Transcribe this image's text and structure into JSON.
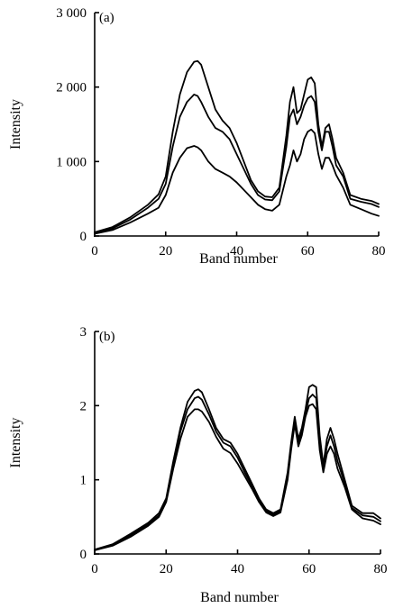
{
  "chart_data": [
    {
      "type": "line",
      "panel_label": "(a)",
      "xlabel": "Band number",
      "ylabel": "Intensity",
      "xlim": [
        0,
        80
      ],
      "ylim": [
        0,
        3000
      ],
      "xticks": [
        0,
        20,
        40,
        60,
        80
      ],
      "xtick_labels": [
        "0",
        "20",
        "40",
        "60",
        "80"
      ],
      "yticks": [
        0,
        1000,
        2000,
        3000
      ],
      "ytick_labels": [
        "0",
        "1 000",
        "2 000",
        "3 000"
      ],
      "grid": false,
      "x": [
        0,
        5,
        10,
        15,
        18,
        20,
        22,
        24,
        26,
        28,
        29,
        30,
        32,
        34,
        36,
        38,
        40,
        42,
        44,
        46,
        48,
        50,
        52,
        54,
        55,
        56,
        57,
        58,
        59,
        60,
        61,
        62,
        63,
        64,
        65,
        66,
        67,
        68,
        70,
        72,
        75,
        78,
        80
      ],
      "series": [
        {
          "values": [
            50,
            120,
            250,
            420,
            560,
            800,
            1400,
            1900,
            2200,
            2340,
            2350,
            2300,
            2000,
            1700,
            1550,
            1450,
            1250,
            1000,
            750,
            600,
            530,
            520,
            650,
            1350,
            1800,
            2000,
            1650,
            1700,
            1900,
            2100,
            2130,
            2050,
            1500,
            1200,
            1450,
            1500,
            1300,
            1050,
            850,
            550,
            500,
            470,
            430
          ]
        },
        {
          "values": [
            40,
            100,
            220,
            380,
            500,
            700,
            1200,
            1600,
            1800,
            1900,
            1880,
            1800,
            1600,
            1450,
            1400,
            1300,
            1100,
            900,
            700,
            550,
            490,
            480,
            600,
            1200,
            1600,
            1700,
            1500,
            1600,
            1750,
            1850,
            1880,
            1800,
            1400,
            1150,
            1400,
            1400,
            1200,
            950,
            800,
            500,
            460,
            430,
            390
          ]
        },
        {
          "values": [
            30,
            80,
            180,
            300,
            380,
            550,
            850,
            1050,
            1180,
            1210,
            1190,
            1150,
            1000,
            900,
            850,
            800,
            720,
            620,
            520,
            420,
            360,
            340,
            420,
            800,
            950,
            1150,
            1000,
            1100,
            1300,
            1400,
            1430,
            1380,
            1100,
            900,
            1050,
            1050,
            950,
            820,
            650,
            420,
            360,
            300,
            270
          ]
        }
      ]
    },
    {
      "type": "line",
      "panel_label": "(b)",
      "xlabel": "Band number",
      "ylabel": "Intensity",
      "xlim": [
        0,
        80
      ],
      "ylim": [
        0,
        3
      ],
      "xticks": [
        0,
        20,
        40,
        60,
        80
      ],
      "xtick_labels": [
        "0",
        "20",
        "40",
        "60",
        "80"
      ],
      "yticks": [
        0,
        1,
        2,
        3
      ],
      "ytick_labels": [
        "0",
        "1",
        "2",
        "3"
      ],
      "grid": false,
      "x": [
        0,
        5,
        10,
        15,
        18,
        20,
        22,
        24,
        26,
        28,
        29,
        30,
        32,
        34,
        36,
        38,
        40,
        42,
        44,
        46,
        48,
        50,
        52,
        54,
        55,
        56,
        57,
        58,
        59,
        60,
        61,
        62,
        63,
        64,
        65,
        66,
        67,
        68,
        70,
        72,
        75,
        78,
        80
      ],
      "series": [
        {
          "values": [
            0.06,
            0.13,
            0.27,
            0.42,
            0.55,
            0.75,
            1.25,
            1.7,
            2.05,
            2.2,
            2.22,
            2.18,
            1.95,
            1.7,
            1.55,
            1.5,
            1.35,
            1.15,
            0.95,
            0.75,
            0.6,
            0.55,
            0.6,
            1.1,
            1.5,
            1.85,
            1.55,
            1.7,
            1.95,
            2.25,
            2.28,
            2.25,
            1.6,
            1.2,
            1.55,
            1.7,
            1.55,
            1.35,
            1.0,
            0.65,
            0.55,
            0.55,
            0.48
          ]
        },
        {
          "values": [
            0.05,
            0.12,
            0.25,
            0.4,
            0.52,
            0.72,
            1.2,
            1.65,
            1.95,
            2.1,
            2.12,
            2.08,
            1.88,
            1.65,
            1.5,
            1.45,
            1.3,
            1.1,
            0.92,
            0.72,
            0.58,
            0.53,
            0.58,
            1.05,
            1.45,
            1.8,
            1.5,
            1.65,
            1.9,
            2.1,
            2.15,
            2.1,
            1.5,
            1.15,
            1.45,
            1.6,
            1.45,
            1.25,
            0.95,
            0.62,
            0.52,
            0.5,
            0.44
          ]
        },
        {
          "values": [
            0.05,
            0.11,
            0.23,
            0.38,
            0.5,
            0.7,
            1.15,
            1.55,
            1.85,
            1.95,
            1.95,
            1.92,
            1.78,
            1.58,
            1.42,
            1.36,
            1.22,
            1.05,
            0.88,
            0.7,
            0.56,
            0.51,
            0.56,
            1.0,
            1.4,
            1.75,
            1.45,
            1.6,
            1.85,
            2.0,
            2.02,
            1.95,
            1.4,
            1.1,
            1.35,
            1.45,
            1.35,
            1.15,
            0.9,
            0.6,
            0.48,
            0.45,
            0.4
          ]
        }
      ]
    }
  ]
}
